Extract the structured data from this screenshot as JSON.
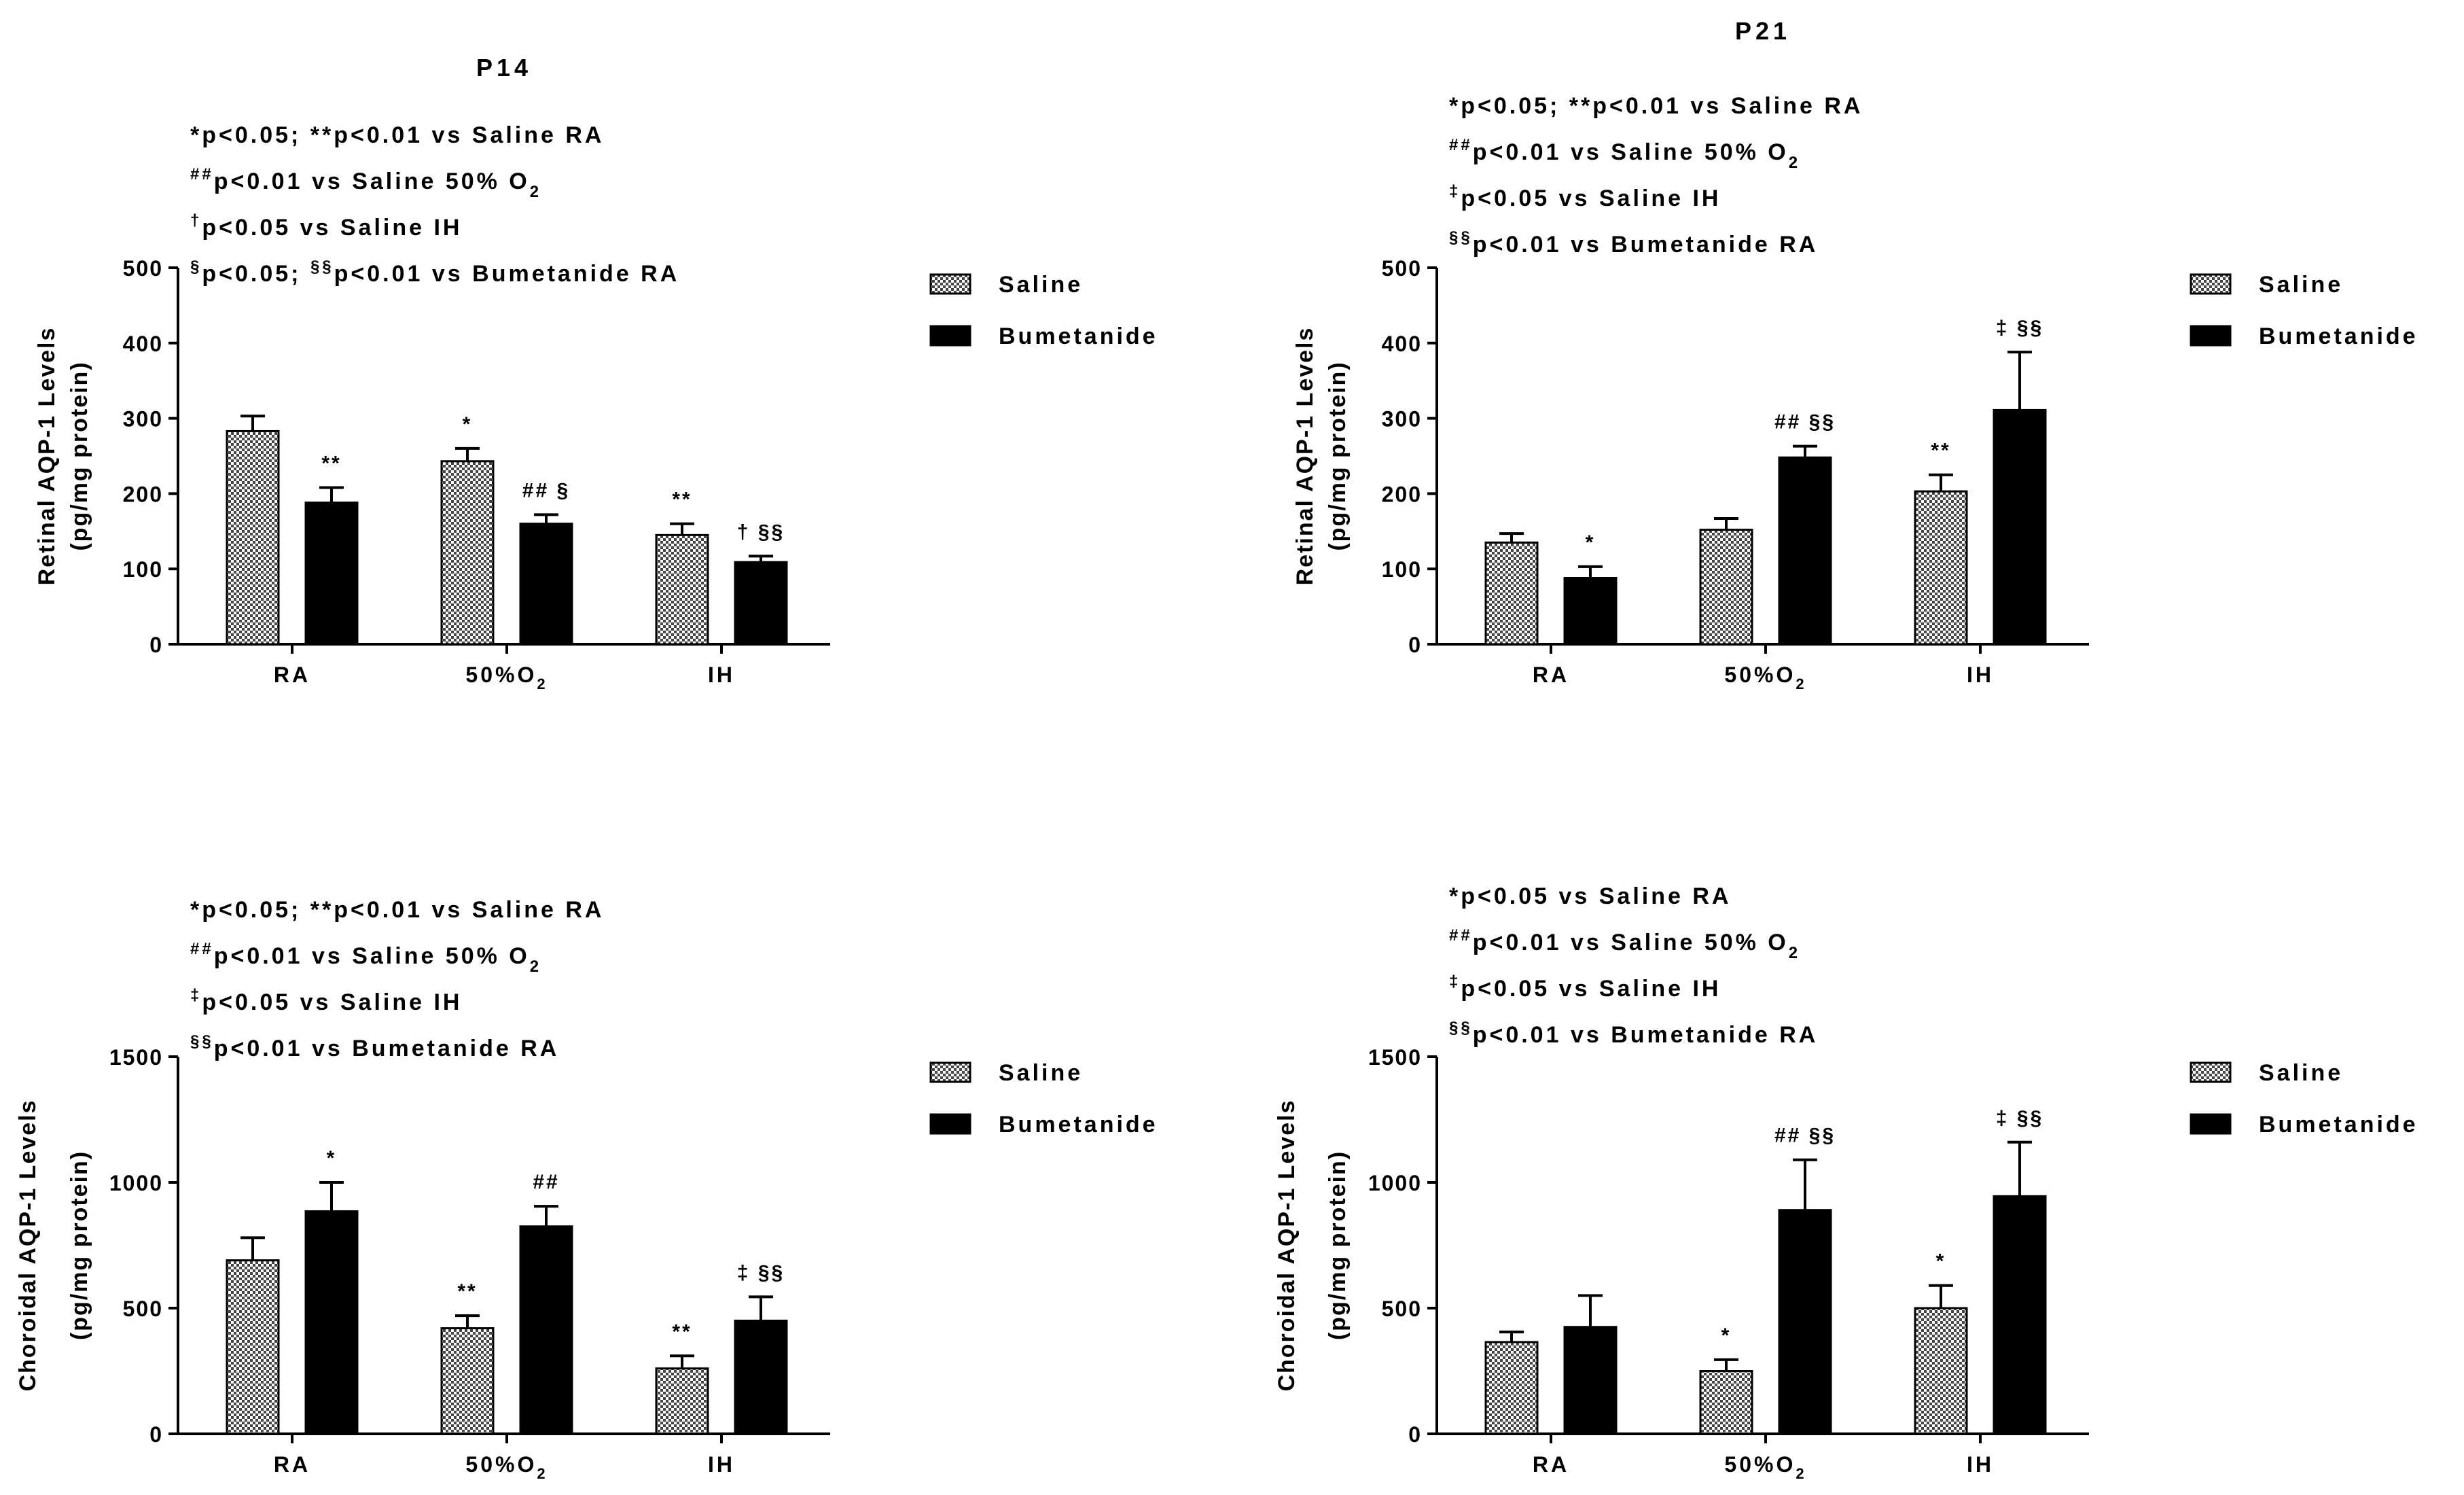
{
  "legend": {
    "saline": "Saline",
    "bumetanide": "Bumetanide"
  },
  "colors": {
    "axis": "#000000",
    "bumetanide": "#000000",
    "saline_fill": "#bdbdbd"
  },
  "chart_data": [
    {
      "id": "p14-retinal",
      "type": "bar",
      "title": "P14",
      "ylabel_line1": "Retinal AQP-1 Levels",
      "ylabel_line2": "(pg/mg protein)",
      "xlabel": "",
      "ylim": [
        0,
        500
      ],
      "yticks": [
        "0",
        "100",
        "200",
        "300",
        "400",
        "500"
      ],
      "categories": [
        "RA",
        "50%O2",
        "IH"
      ],
      "category_labels": [
        {
          "text": "RA",
          "sub": ""
        },
        {
          "text": "50%O",
          "sub": "2"
        },
        {
          "text": "IH",
          "sub": ""
        }
      ],
      "series": [
        {
          "name": "Saline",
          "values": [
            283,
            243,
            145
          ],
          "errors": [
            20,
            17,
            15
          ],
          "sig": [
            "",
            "*",
            "**"
          ]
        },
        {
          "name": "Bumetanide",
          "values": [
            188,
            160,
            109
          ],
          "errors": [
            20,
            12,
            8
          ],
          "sig": [
            "**",
            "## §",
            "† §§"
          ]
        }
      ],
      "annotations": [
        {
          "pre": "*p<0.05; **p<0.01 vs Saline RA",
          "sup": "",
          "post": "",
          "sub": ""
        },
        {
          "pre": "",
          "sup": "##",
          "post": "p<0.01 vs Saline 50% O",
          "sub": "2"
        },
        {
          "pre": "",
          "sup": "†",
          "post": "p<0.05 vs Saline IH",
          "sub": ""
        },
        {
          "pre": "",
          "sup": "§",
          "post": "p<0.05; ",
          "sup2": "§§",
          "post2": "p<0.01  vs Bumetanide  RA",
          "sub": ""
        }
      ]
    },
    {
      "id": "p21-retinal",
      "type": "bar",
      "title": "P21",
      "ylabel_line1": "Retinal AQP-1 Levels",
      "ylabel_line2": "(pg/mg protein)",
      "xlabel": "",
      "ylim": [
        0,
        500
      ],
      "yticks": [
        "0",
        "100",
        "200",
        "300",
        "400",
        "500"
      ],
      "categories": [
        "RA",
        "50%O2",
        "IH"
      ],
      "category_labels": [
        {
          "text": "RA",
          "sub": ""
        },
        {
          "text": "50%O",
          "sub": "2"
        },
        {
          "text": "IH",
          "sub": ""
        }
      ],
      "series": [
        {
          "name": "Saline",
          "values": [
            135,
            152,
            203
          ],
          "errors": [
            12,
            15,
            22
          ],
          "sig": [
            "",
            "",
            "**"
          ]
        },
        {
          "name": "Bumetanide",
          "values": [
            88,
            248,
            311
          ],
          "errors": [
            15,
            15,
            77
          ],
          "sig": [
            "*",
            "## §§",
            "‡ §§"
          ]
        }
      ],
      "annotations": [
        {
          "pre": "*p<0.05; **p<0.01 vs Saline RA",
          "sup": "",
          "post": "",
          "sub": ""
        },
        {
          "pre": "",
          "sup": "##",
          "post": "p<0.01 vs Saline 50% O",
          "sub": "2"
        },
        {
          "pre": "",
          "sup": "‡",
          "post": "p<0.05 vs Saline IH",
          "sub": ""
        },
        {
          "pre": "",
          "sup": "§§",
          "post": "p<0.01  vs Bumetanide  RA",
          "sub": ""
        }
      ]
    },
    {
      "id": "p14-choroidal",
      "type": "bar",
      "title": "",
      "ylabel_line1": "Choroidal AQP-1 Levels",
      "ylabel_line2": "(pg/mg protein)",
      "xlabel": "",
      "ylim": [
        0,
        1500
      ],
      "yticks": [
        "0",
        "500",
        "1000",
        "1500"
      ],
      "categories": [
        "RA",
        "50%O2",
        "IH"
      ],
      "category_labels": [
        {
          "text": "RA",
          "sub": ""
        },
        {
          "text": "50%O",
          "sub": "2"
        },
        {
          "text": "IH",
          "sub": ""
        }
      ],
      "series": [
        {
          "name": "Saline",
          "values": [
            690,
            420,
            260
          ],
          "errors": [
            90,
            50,
            50
          ],
          "sig": [
            "",
            "**",
            "**"
          ]
        },
        {
          "name": "Bumetanide",
          "values": [
            885,
            825,
            450
          ],
          "errors": [
            115,
            80,
            95
          ],
          "sig": [
            "*",
            "##",
            "‡ §§"
          ]
        }
      ],
      "annotations": [
        {
          "pre": "*p<0.05; **p<0.01 vs Saline RA",
          "sup": "",
          "post": "",
          "sub": ""
        },
        {
          "pre": "",
          "sup": "##",
          "post": "p<0.01 vs Saline 50% O",
          "sub": "2"
        },
        {
          "pre": "",
          "sup": "‡",
          "post": "p<0.05 vs Saline IH",
          "sub": ""
        },
        {
          "pre": "",
          "sup": "§§",
          "post": "p<0.01  vs Bumetanide  RA",
          "sub": ""
        }
      ]
    },
    {
      "id": "p21-choroidal",
      "type": "bar",
      "title": "",
      "ylabel_line1": "Choroidal AQP-1 Levels",
      "ylabel_line2": "(pg/mg protein)",
      "xlabel": "",
      "ylim": [
        0,
        1500
      ],
      "yticks": [
        "0",
        "500",
        "1000",
        "1500"
      ],
      "categories": [
        "RA",
        "50%O2",
        "IH"
      ],
      "category_labels": [
        {
          "text": "RA",
          "sub": ""
        },
        {
          "text": "50%O",
          "sub": "2"
        },
        {
          "text": "IH",
          "sub": ""
        }
      ],
      "series": [
        {
          "name": "Saline",
          "values": [
            365,
            250,
            500
          ],
          "errors": [
            40,
            45,
            90
          ],
          "sig": [
            "",
            "*",
            "*"
          ]
        },
        {
          "name": "Bumetanide",
          "values": [
            425,
            890,
            945
          ],
          "errors": [
            125,
            200,
            215
          ],
          "sig": [
            "",
            "## §§",
            "‡ §§"
          ]
        }
      ],
      "annotations": [
        {
          "pre": "*p<0.05 vs Saline RA",
          "sup": "",
          "post": "",
          "sub": ""
        },
        {
          "pre": "",
          "sup": "##",
          "post": "p<0.01 vs Saline 50% O",
          "sub": "2"
        },
        {
          "pre": "",
          "sup": "‡",
          "post": "p<0.05 vs Saline IH",
          "sub": ""
        },
        {
          "pre": "",
          "sup": "§§",
          "post": "p<0.01  vs Bumetanide  RA",
          "sub": ""
        }
      ]
    }
  ]
}
